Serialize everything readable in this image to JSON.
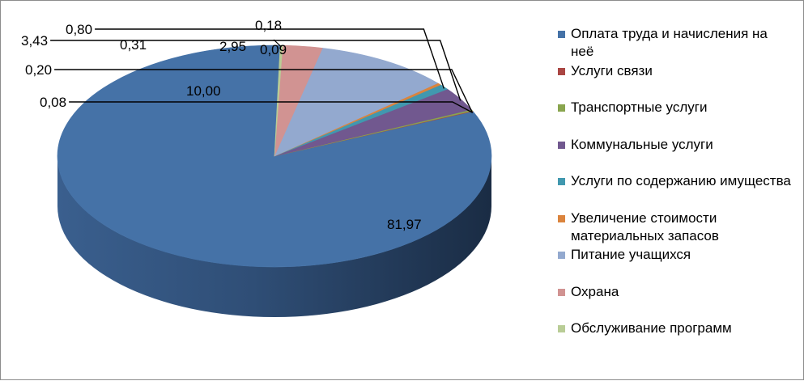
{
  "chart_data": {
    "type": "pie",
    "three_d": true,
    "title": "",
    "legend_position": "right",
    "decimal_separator": ",",
    "categories": [
      "Оплата труда и начисления на неё",
      "Услуги связи",
      "Транспортные услуги",
      "Коммунальные услуги",
      "Услуги по содержанию имущества",
      "Увеличение стоимости материальных запасов",
      "Питание учащихся",
      "Охрана",
      "Обслуживание программ"
    ],
    "values": [
      81.97,
      0.08,
      0.2,
      3.43,
      0.8,
      0.31,
      10.0,
      2.95,
      0.18
    ],
    "value_labels": [
      "81,97",
      "0,08",
      "0,20",
      "3,43",
      "0,80",
      "0,31",
      "10,00",
      "2,95",
      "0,18"
    ],
    "extra_labels": [
      "0,09"
    ],
    "colors": [
      "#4572A7",
      "#AA4643",
      "#89A54E",
      "#71588F",
      "#4198AF",
      "#DB843D",
      "#93A9CF",
      "#D19392",
      "#B9CD96"
    ]
  }
}
